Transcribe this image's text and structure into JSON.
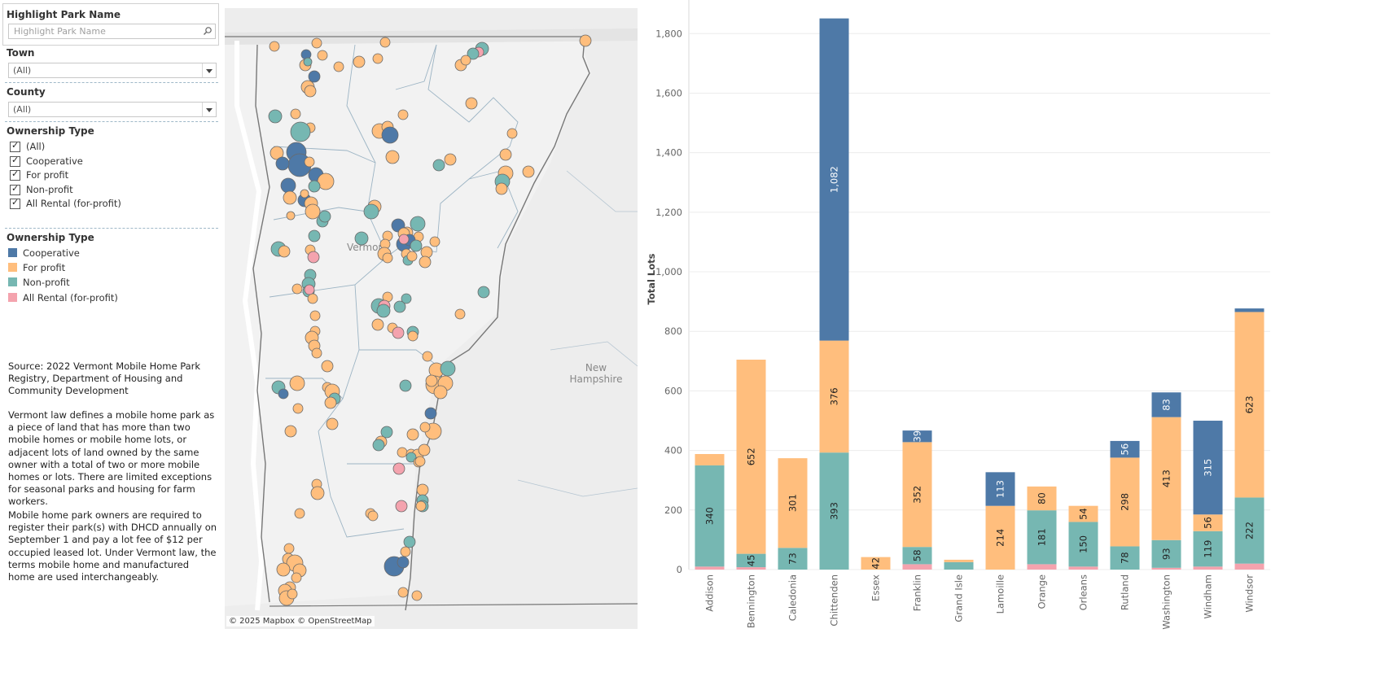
{
  "filters": {
    "highlight": {
      "title": "Highlight Park Name",
      "placeholder": "Highlight Park Name"
    },
    "town": {
      "title": "Town",
      "value": "(All)"
    },
    "county": {
      "title": "County",
      "value": "(All)"
    },
    "ownership": {
      "title": "Ownership Type",
      "options": [
        {
          "label": "(All)",
          "checked": true
        },
        {
          "label": "Cooperative",
          "checked": true
        },
        {
          "label": "For profit",
          "checked": true
        },
        {
          "label": "Non-profit",
          "checked": true
        },
        {
          "label": "All Rental (for-profit)",
          "checked": true
        }
      ]
    }
  },
  "legend": {
    "title": "Ownership Type",
    "items": [
      {
        "label": "Cooperative",
        "color": "#4e79a7"
      },
      {
        "label": "For profit",
        "color": "#ffbe7d"
      },
      {
        "label": "Non-profit",
        "color": "#76b7b2"
      },
      {
        "label": "All Rental (for-profit)",
        "color": "#f4a3ae"
      }
    ]
  },
  "notes": {
    "source": "Source: 2022 Vermont Mobile Home Park Registry, Department of Housing and Community Development",
    "definition": "Vermont law defines a mobile home park as a piece of land that has more than two mobile homes or mobile home lots, or adjacent lots of land owned by the same owner with a total of two or more mobile homes or lots. There are limited exceptions for seasonal parks and housing for farm workers.",
    "registration": "Mobile home park owners are required to register their park(s) with DHCD annually on September 1 and pay a lot fee of $12 per occupied leased lot. Under Vermont law, the terms mobile home and manufactured home are used interchangeably."
  },
  "map": {
    "labels": {
      "vermont": "Vermont",
      "new_hampshire": "New Hampshire"
    },
    "attribution": "© 2025 Mapbox © OpenStreetMap"
  },
  "chart_data": {
    "type": "bar",
    "stacked": true,
    "ylabel": "Total Lots",
    "ylim": [
      0,
      1850
    ],
    "yticks": [
      0,
      200,
      400,
      600,
      800,
      1000,
      1200,
      1400,
      1600,
      1800
    ],
    "categories": [
      "Addison",
      "Bennington",
      "Caledonia",
      "Chittenden",
      "Essex",
      "Franklin",
      "Grand Isle",
      "Lamoille",
      "Orange",
      "Orleans",
      "Rutland",
      "Washington",
      "Windham",
      "Windsor"
    ],
    "series": [
      {
        "name": "All Rental (for-profit)",
        "color": "#f4a3ae",
        "values": [
          10,
          8,
          0,
          0,
          0,
          18,
          0,
          0,
          18,
          10,
          0,
          6,
          10,
          20
        ]
      },
      {
        "name": "Non-profit",
        "color": "#76b7b2",
        "values": [
          340,
          45,
          73,
          393,
          0,
          58,
          25,
          0,
          181,
          150,
          78,
          93,
          119,
          222
        ]
      },
      {
        "name": "For profit",
        "color": "#ffbe7d",
        "values": [
          38,
          652,
          301,
          376,
          42,
          352,
          8,
          214,
          80,
          54,
          298,
          413,
          56,
          623
        ]
      },
      {
        "name": "Cooperative",
        "color": "#4e79a7",
        "values": [
          0,
          0,
          0,
          1082,
          0,
          39,
          0,
          113,
          0,
          0,
          56,
          83,
          315,
          12
        ]
      }
    ]
  }
}
